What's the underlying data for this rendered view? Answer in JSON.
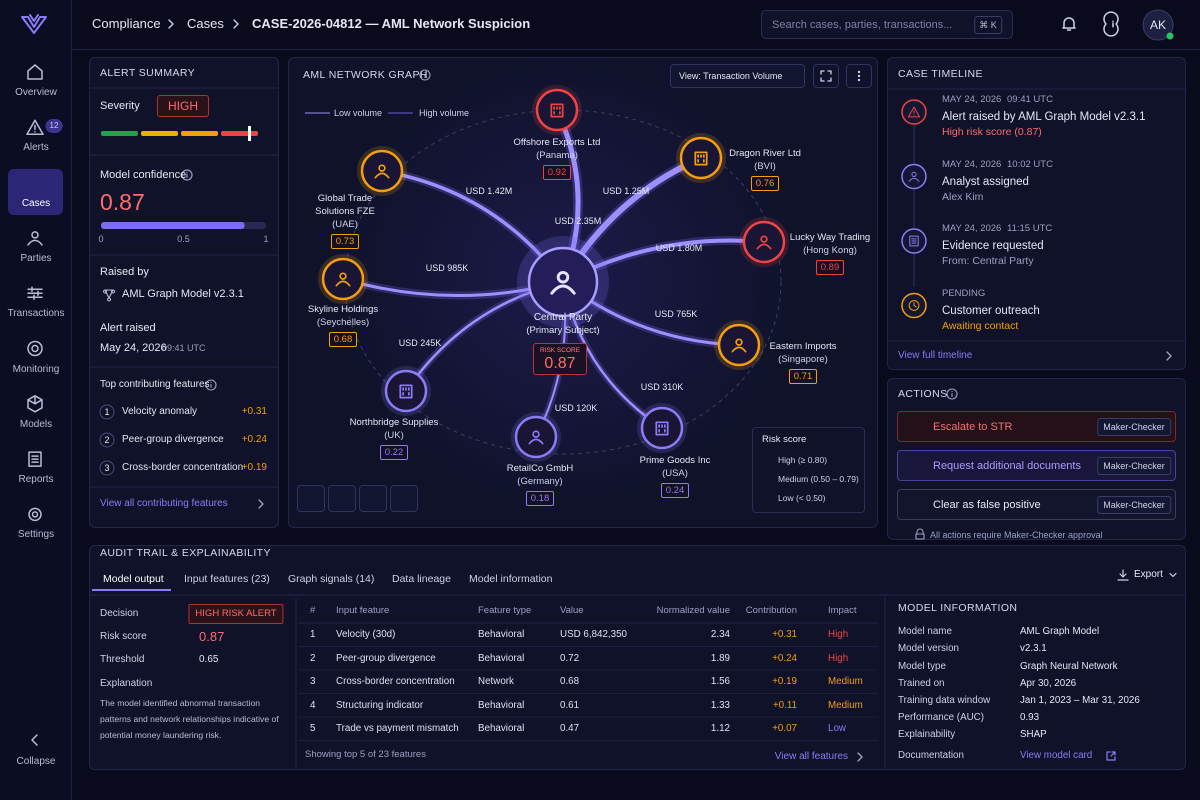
{
  "sidebar": {
    "items": [
      {
        "label": "Overview"
      },
      {
        "label": "Alerts",
        "badge": 12
      },
      {
        "label": "Cases"
      },
      {
        "label": "Parties"
      },
      {
        "label": "Transactions"
      },
      {
        "label": "Monitoring"
      },
      {
        "label": "Models"
      },
      {
        "label": "Reports"
      },
      {
        "label": "Settings"
      }
    ],
    "collapse": "Collapse"
  },
  "topbar": {
    "breadcrumb": [
      "Compliance",
      "Cases",
      "CASE-2026-04812 — AML Network Suspicion"
    ],
    "search": "Search cases, parties, transactions...",
    "shortcut": "⌘ K",
    "avatar": "AK"
  },
  "alert_summary": {
    "title": "ALERT SUMMARY",
    "severity_label": "Severity",
    "severity": "HIGH",
    "confidence_label": "Model confidence",
    "confidence": 0.87,
    "scale": [
      0,
      0.5,
      1
    ],
    "raised_by_label": "Raised by",
    "raised_by": "AML Graph Model v2.3.1",
    "raised_label": "Alert raised",
    "raised_date": "May 24, 2026",
    "raised_time": "09:41 UTC",
    "features_title": "Top contributing features",
    "features": [
      {
        "rank": 1,
        "name": "Velocity anomaly",
        "value": "+0.31"
      },
      {
        "rank": 2,
        "name": "Peer-group divergence",
        "value": "+0.24"
      },
      {
        "rank": 3,
        "name": "Cross-border concentration",
        "value": "+0.19"
      }
    ],
    "link": "View all contributing features"
  },
  "graph": {
    "title": "AML NETWORK GRAPH",
    "view": "View: Transaction Volume",
    "legend_low": "Low volume",
    "legend_high": "High volume",
    "center": {
      "name": "Central Party",
      "role": "(Primary Subject)",
      "score_label": "RISK SCORE",
      "score": 0.87
    },
    "nodes": [
      {
        "name": "Offshore Exports Ltd",
        "sub": "(Panama)",
        "score": 0.92,
        "amount": "USD 2.35M"
      },
      {
        "name": "Dragon River Ltd",
        "sub": "(BVI)",
        "score": 0.76,
        "amount": "USD 1.25M"
      },
      {
        "name": "Lucky Way Trading",
        "sub": "(Hong Kong)",
        "score": 0.89,
        "amount": "USD 1.80M"
      },
      {
        "name": "Eastern Imports",
        "sub": "(Singapore)",
        "score": 0.71,
        "amount": "USD 765K"
      },
      {
        "name": "Prime Goods Inc",
        "sub": "(USA)",
        "score": 0.24,
        "amount": "USD 310K"
      },
      {
        "name": "RetailCo GmbH",
        "sub": "(Germany)",
        "score": 0.18,
        "amount": "USD 120K"
      },
      {
        "name": "Northbridge Supplies",
        "sub": "(UK)",
        "score": 0.22,
        "amount": "USD 245K"
      },
      {
        "name": "Skyline Holdings",
        "sub": "(Seychelles)",
        "score": 0.68,
        "amount": "USD 985K"
      },
      {
        "name": "Global Trade Solutions FZE",
        "sub": "(UAE)",
        "score": 0.73,
        "amount": "USD 1.42M"
      }
    ],
    "risk_legend": {
      "title": "Risk score",
      "items": [
        "High (≥ 0.80)",
        "Medium (0.50 – 0.79)",
        "Low (< 0.50)"
      ]
    }
  },
  "timeline": {
    "title": "CASE TIMELINE",
    "items": [
      {
        "date": "MAY 24, 2026",
        "time": "09:41 UTC",
        "title": "Alert raised by AML Graph Model v2.3.1",
        "detail": "High risk score (0.87)"
      },
      {
        "date": "MAY 24, 2026",
        "time": "10:02 UTC",
        "title": "Analyst assigned",
        "detail": "Alex Kim"
      },
      {
        "date": "MAY 24, 2026",
        "time": "11:15 UTC",
        "title": "Evidence requested",
        "detail": "From: Central Party"
      },
      {
        "date": "PENDING",
        "title": "Customer outreach",
        "detail": "Awaiting contact"
      }
    ],
    "link": "View full timeline"
  },
  "actions": {
    "title": "ACTIONS",
    "items": [
      {
        "label": "Escalate to STR",
        "tag": "Maker-Checker"
      },
      {
        "label": "Request additional documents",
        "tag": "Maker-Checker"
      },
      {
        "label": "Clear as false positive",
        "tag": "Maker-Checker"
      }
    ],
    "note": "All actions require Maker-Checker approval"
  },
  "audit": {
    "title": "AUDIT TRAIL & EXPLAINABILITY",
    "tabs": [
      "Model output",
      "Input features (23)",
      "Graph signals (14)",
      "Data lineage",
      "Model information"
    ],
    "export": "Export",
    "decision_label": "Decision",
    "decision": "HIGH RISK ALERT",
    "risk_label": "Risk score",
    "risk": 0.87,
    "threshold_label": "Threshold",
    "threshold": 0.65,
    "explanation_label": "Explanation",
    "explanation": "The model identified abnormal transaction patterns and network relationships indicative of potential money laundering risk.",
    "table": {
      "columns": [
        "#",
        "Input feature",
        "Feature type",
        "Value",
        "Normalized value",
        "Contribution",
        "Impact"
      ],
      "rows": [
        [
          "1",
          "Velocity (30d)",
          "Behavioral",
          "USD 6,842,350",
          "2.34",
          "+0.31",
          "High"
        ],
        [
          "2",
          "Peer-group divergence",
          "Behavioral",
          "0.72",
          "1.89",
          "+0.24",
          "High"
        ],
        [
          "3",
          "Cross-border concentration",
          "Network",
          "0.68",
          "1.56",
          "+0.19",
          "Medium"
        ],
        [
          "4",
          "Structuring indicator",
          "Behavioral",
          "0.61",
          "1.33",
          "+0.11",
          "Medium"
        ],
        [
          "5",
          "Trade vs payment mismatch",
          "Behavioral",
          "0.47",
          "1.12",
          "+0.07",
          "Low"
        ]
      ]
    },
    "footer": "Showing top 5 of 23 features",
    "link": "View all features",
    "model_info": {
      "title": "MODEL INFORMATION",
      "rows": [
        [
          "Model name",
          "AML Graph Model"
        ],
        [
          "Model version",
          "v2.3.1"
        ],
        [
          "Model type",
          "Graph Neural Network"
        ],
        [
          "Trained on",
          "Apr 30, 2026"
        ],
        [
          "Training data window",
          "Jan 1, 2023 – Mar 31, 2026"
        ],
        [
          "Performance (AUC)",
          "0.93"
        ],
        [
          "Explainability",
          "SHAP"
        ],
        [
          "Documentation",
          "View model card"
        ]
      ]
    }
  }
}
